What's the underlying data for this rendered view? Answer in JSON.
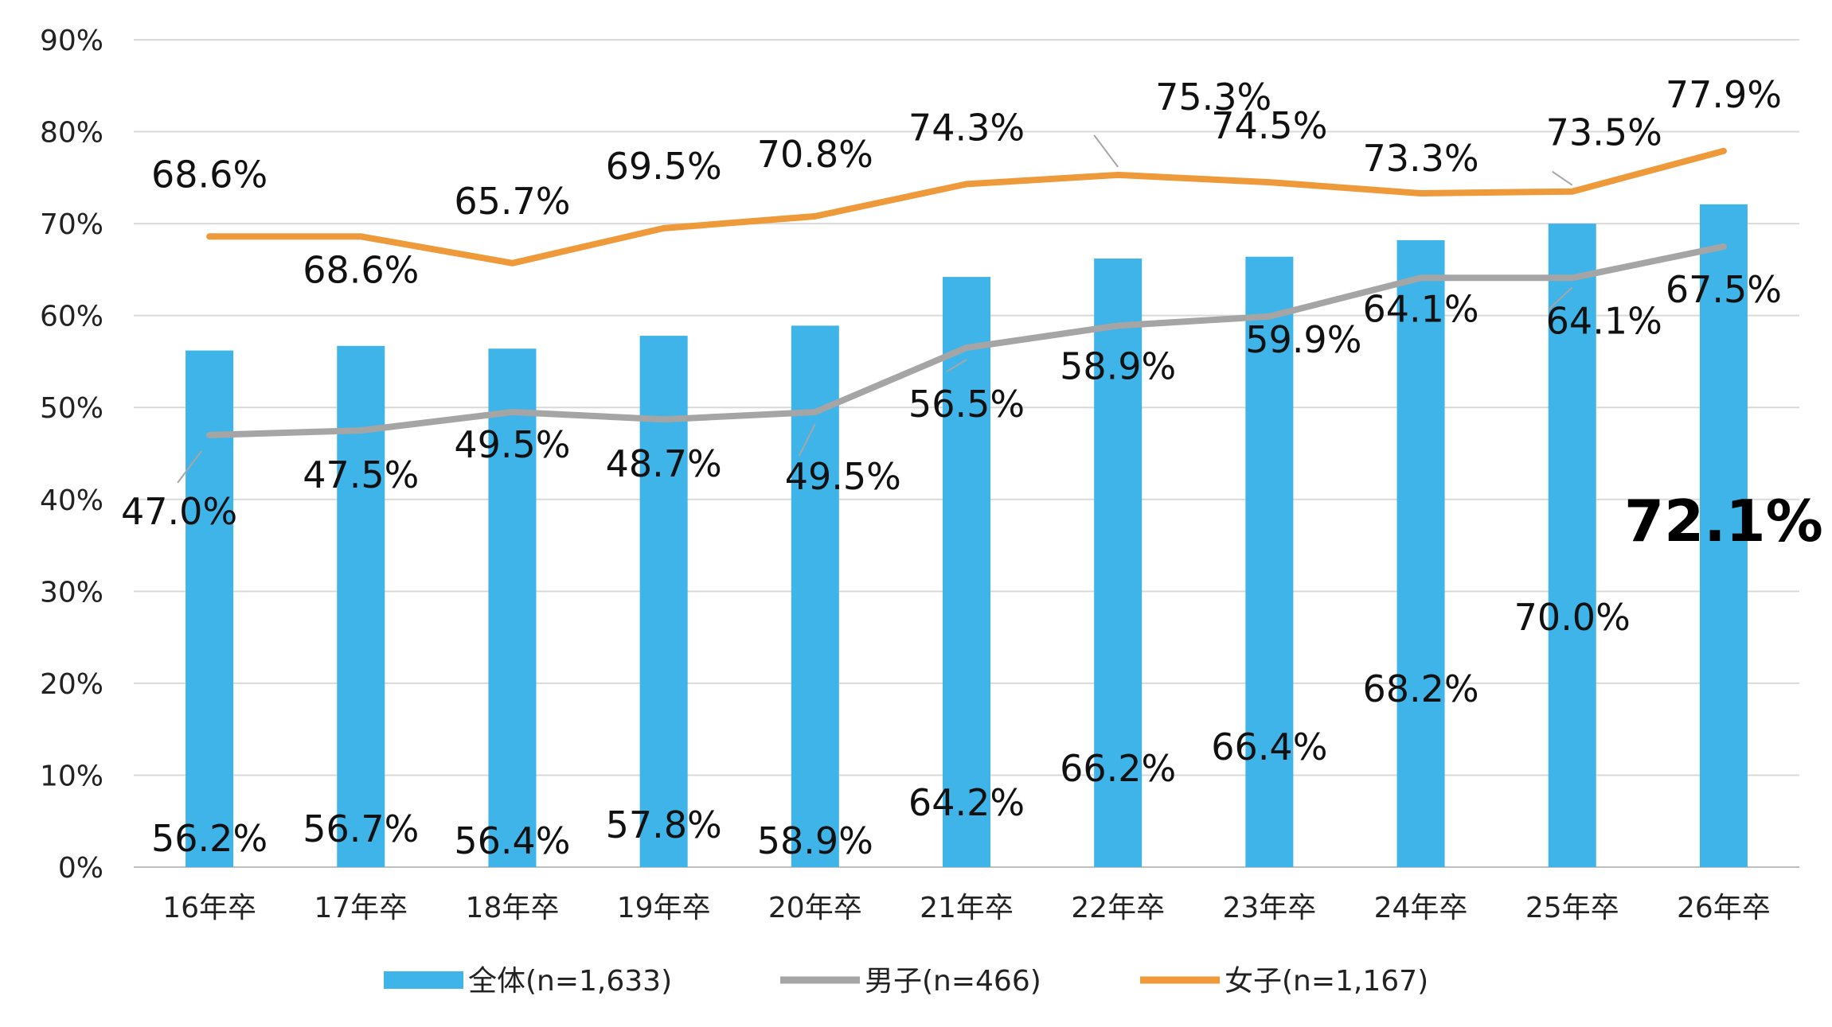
{
  "chart_data": {
    "type": "bar",
    "categories": [
      "16年卒",
      "17年卒",
      "18年卒",
      "19年卒",
      "20年卒",
      "21年卒",
      "22年卒",
      "23年卒",
      "24年卒",
      "25年卒",
      "26年卒"
    ],
    "ylim": [
      0,
      90
    ],
    "yticks": [
      "0%",
      "10%",
      "20%",
      "30%",
      "40%",
      "50%",
      "60%",
      "70%",
      "80%",
      "90%"
    ],
    "grid": true,
    "legend_position": "bottom",
    "series": [
      {
        "name": "全体(n=1,633)",
        "type": "bar",
        "color": "#3EB4E8",
        "values": [
          56.2,
          56.7,
          56.4,
          57.8,
          58.9,
          64.2,
          66.2,
          66.4,
          68.2,
          70.0,
          72.1
        ],
        "labels": [
          "56.2%",
          "56.7%",
          "56.4%",
          "57.8%",
          "58.9%",
          "64.2%",
          "66.2%",
          "66.4%",
          "68.2%",
          "70.0%",
          "72.1%"
        ]
      },
      {
        "name": "男子(n=466)",
        "type": "line",
        "color": "#A5A5A5",
        "values": [
          47.0,
          47.5,
          49.5,
          48.7,
          49.5,
          56.5,
          58.9,
          59.9,
          64.1,
          64.1,
          67.5
        ],
        "labels": [
          "47.0%",
          "47.5%",
          "49.5%",
          "48.7%",
          "49.5%",
          "56.5%",
          "58.9%",
          "59.9%",
          "64.1%",
          "64.1%",
          "67.5%"
        ]
      },
      {
        "name": "女子(n=1,167)",
        "type": "line",
        "color": "#EE9A3A",
        "values": [
          68.6,
          68.6,
          65.7,
          69.5,
          70.8,
          74.3,
          75.3,
          74.5,
          73.3,
          73.5,
          77.9
        ],
        "labels": [
          "68.6%",
          "68.6%",
          "65.7%",
          "69.5%",
          "70.8%",
          "74.3%",
          "75.3%",
          "74.5%",
          "73.3%",
          "73.5%",
          "77.9%"
        ]
      }
    ]
  }
}
